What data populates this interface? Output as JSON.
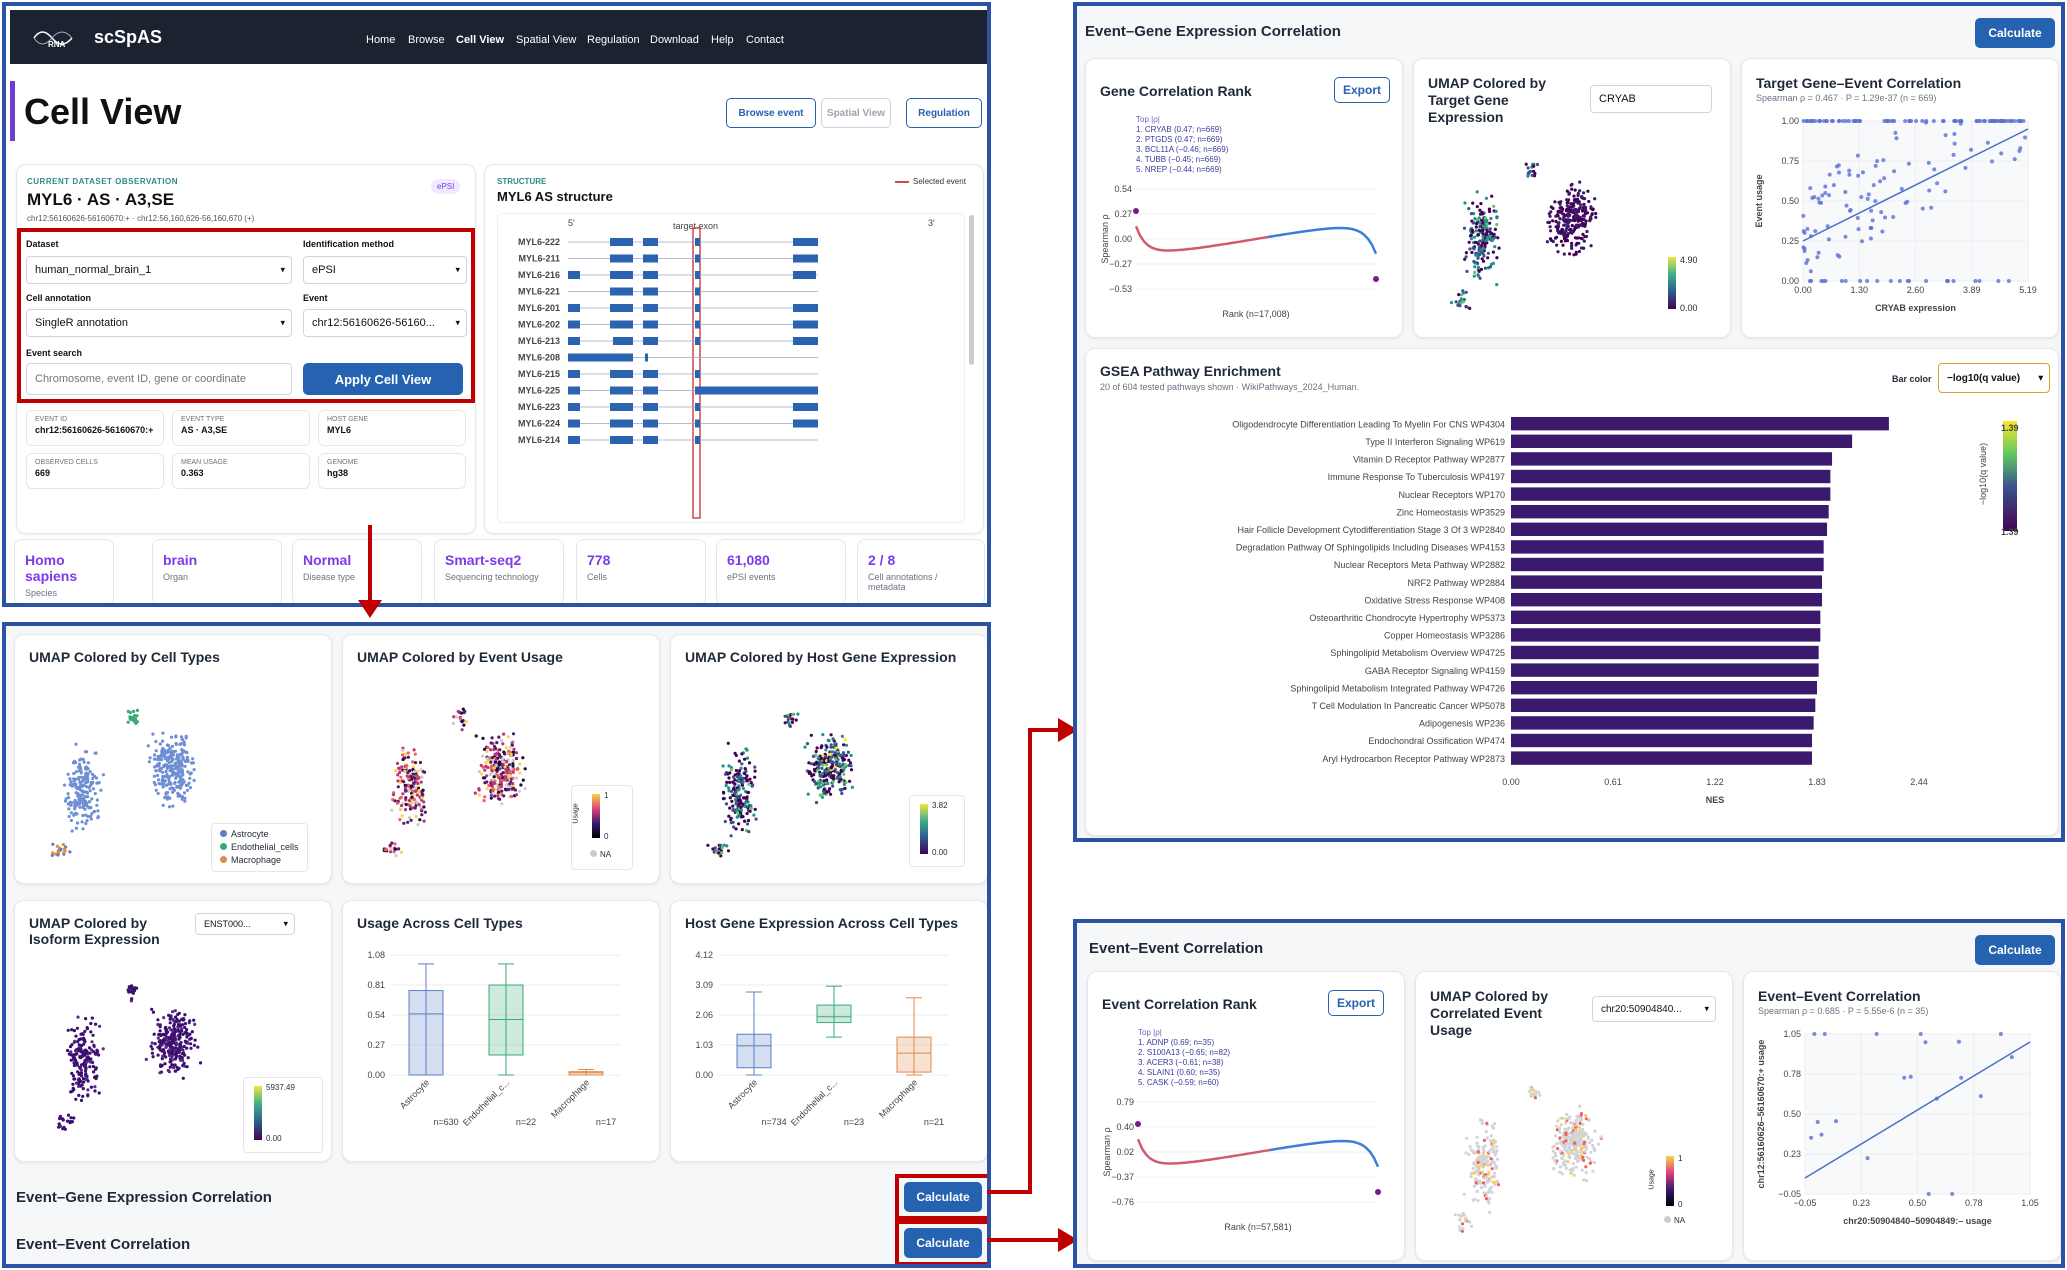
{
  "nav": {
    "brand": "scSpAS",
    "logo_text": "RNA",
    "links": [
      "Home",
      "Browse",
      "Cell View",
      "Spatial View",
      "Regulation",
      "Download",
      "Help",
      "Contact"
    ],
    "active": "Cell View"
  },
  "page": {
    "title": "Cell View",
    "buttons": {
      "browse": "Browse event",
      "spatial": "Spatial View",
      "regulation": "Regulation"
    }
  },
  "observation": {
    "kicker": "CURRENT DATASET OBSERVATION",
    "badge": "ePSI",
    "title": "MYL6 · AS · A3,SE",
    "coords": "chr12:56160626-56160670:+ · chr12:56,160,626-56,160,670 (+)"
  },
  "form": {
    "dataset_label": "Dataset",
    "dataset": "human_normal_brain_1",
    "method_label": "Identification method",
    "method": "ePSI",
    "annotation_label": "Cell annotation",
    "annotation": "SingleR annotation",
    "event_label": "Event",
    "event": "chr12:56160626-56160...",
    "search_label": "Event search",
    "search_placeholder": "Chromosome, event ID, gene or coordinate",
    "apply": "Apply Cell View"
  },
  "info": [
    {
      "k": "EVENT ID",
      "v": "chr12:56160626-56160670:+"
    },
    {
      "k": "EVENT TYPE",
      "v": "AS · A3,SE"
    },
    {
      "k": "HOST GENE",
      "v": "MYL6"
    },
    {
      "k": "OBSERVED CELLS",
      "v": "669"
    },
    {
      "k": "MEAN USAGE",
      "v": "0.363"
    },
    {
      "k": "GENOME",
      "v": "hg38"
    }
  ],
  "structure": {
    "kicker": "STRUCTURE",
    "title": "MYL6 AS structure",
    "legend": "Selected event",
    "target": "target exon",
    "left": "5'",
    "right": "3'",
    "isoforms": [
      "MYL6-222",
      "MYL6-211",
      "MYL6-216",
      "MYL6-221",
      "MYL6-201",
      "MYL6-202",
      "MYL6-213",
      "MYL6-208",
      "MYL6-215",
      "MYL6-225",
      "MYL6-223",
      "MYL6-224",
      "MYL6-214"
    ]
  },
  "stats": [
    {
      "v": "Homo sapiens",
      "k": "Species"
    },
    {
      "v": "brain",
      "k": "Organ"
    },
    {
      "v": "Normal",
      "k": "Disease type"
    },
    {
      "v": "Smart-seq2",
      "k": "Sequencing technology"
    },
    {
      "v": "778",
      "k": "Cells"
    },
    {
      "v": "61,080",
      "k": "ePSI events"
    },
    {
      "v": "2 / 8",
      "k": "Cell annotations / metadata"
    }
  ],
  "umap": {
    "cell_types": "UMAP Colored by Cell Types",
    "event_usage": "UMAP Colored by Event Usage",
    "host_gene": "UMAP Colored by Host Gene Expression",
    "isoform": "UMAP Colored by Isoform Expression",
    "isoform_select": "ENST000...",
    "legend": [
      "Astrocyte",
      "Endothelial_cells",
      "Macrophage"
    ],
    "usage_max": "1",
    "usage_min": "0",
    "na": "NA",
    "usage_label": "Usage",
    "host_max": "3.82",
    "host_min": "0.00",
    "iso_max": "5937.49",
    "iso_min": "0.00"
  },
  "box": {
    "usage_title": "Usage Across Cell Types",
    "host_title": "Host Gene Expression Across Cell Types",
    "cats": [
      "Astrocyte",
      "Endothelial_c...",
      "Macrophage"
    ],
    "usage_n": [
      "n=630",
      "n=22",
      "n=17"
    ],
    "host_n": [
      "n=734",
      "n=23",
      "n=21"
    ],
    "usage_ticks": [
      "1.08",
      "0.81",
      "0.54",
      "0.27",
      "0.00"
    ],
    "host_ticks": [
      "4.12",
      "3.09",
      "2.06",
      "1.03",
      "0.00"
    ]
  },
  "sections": {
    "egc": "Event–Gene Expression Correlation",
    "eec": "Event–Event Correlation",
    "calculate": "Calculate",
    "export": "Export"
  },
  "egc": {
    "rank_title": "Gene Correlation Rank",
    "top_label": "Top |ρ|",
    "top": [
      "1. CRYAB (0.47; n=669)",
      "2. PTGDS (0.47; n=669)",
      "3. BCL11A (−0.46; n=669)",
      "4. TUBB (−0.45; n=669)",
      "5. NREP (−0.44; n=669)"
    ],
    "yticks": [
      "0.54",
      "0.27",
      "0.00",
      "−0.27",
      "−0.53"
    ],
    "ylabel": "Spearman ρ",
    "xlabel": "Rank (n=17,008)",
    "umap_title": "UMAP Colored by Target Gene Expression",
    "gene": "CRYAB",
    "cb_max": "4.90",
    "cb_min": "0.00",
    "scatter_title": "Target Gene–Event Correlation",
    "scatter_sub": "Spearman ρ = 0.467 · P = 1.29e-37 (n = 669)",
    "sx": [
      "0.00",
      "1.30",
      "2.60",
      "3.89",
      "5.19"
    ],
    "sy": [
      "1.00",
      "0.75",
      "0.50",
      "0.25",
      "0.00"
    ],
    "sxlabel": "CRYAB expression",
    "sylabel": "Event usage"
  },
  "gsea": {
    "title": "GSEA Pathway Enrichment",
    "sub": "20 of 604 tested pathways shown · WikiPathways_2024_Human.",
    "barcolor_label": "Bar color",
    "barcolor": "−log10(q value)",
    "xlabel": "NES",
    "xticks": [
      "0.00",
      "0.61",
      "1.22",
      "1.83",
      "2.44"
    ],
    "cb_label": "−log10(q value)",
    "cb_top": "1.39",
    "cb_bot": "1.39"
  },
  "chart_data": {
    "type": "bar",
    "title": "GSEA Pathway Enrichment",
    "xlabel": "NES",
    "xlim": [
      0,
      2.44
    ],
    "categories": [
      "Oligodendrocyte Differentiation Leading To Myelin For CNS WP4304",
      "Type II Interferon Signaling WP619",
      "Vitamin D Receptor Pathway WP2877",
      "Immune Response To Tuberculosis WP4197",
      "Nuclear Receptors WP170",
      "Zinc Homeostasis WP3529",
      "Hair Follicle Development Cytodifferentiation Stage 3 Of 3 WP2840",
      "Degradation Pathway Of Sphingolipids Including Diseases WP4153",
      "Nuclear Receptors Meta Pathway WP2882",
      "NRF2 Pathway WP2884",
      "Oxidative Stress Response WP408",
      "Osteoarthritic Chondrocyte Hypertrophy WP5373",
      "Copper Homeostasis WP3286",
      "Sphingolipid Metabolism Overview WP4725",
      "GABA Receptor Signaling WP4159",
      "Sphingolipid Metabolism Integrated Pathway WP4726",
      "T Cell Modulation In Pancreatic Cancer WP5078",
      "Adipogenesis WP236",
      "Endochondral Ossification WP474",
      "Aryl Hydrocarbon Receptor Pathway WP2873"
    ],
    "values": [
      2.26,
      2.04,
      1.92,
      1.91,
      1.91,
      1.9,
      1.89,
      1.87,
      1.87,
      1.86,
      1.86,
      1.85,
      1.85,
      1.84,
      1.84,
      1.83,
      1.82,
      1.81,
      1.8,
      1.8
    ]
  },
  "eec": {
    "rank_title": "Event Correlation Rank",
    "top_label": "Top |ρ|",
    "top": [
      "1. ADNP (0.69; n=35)",
      "2. S100A13 (−0.65; n=82)",
      "3. ACER3 (−0.61; n=38)",
      "4. SLAIN1 (0.60; n=35)",
      "5. CASK (−0.59; n=60)"
    ],
    "yticks": [
      "0.79",
      "0.40",
      "0.02",
      "−0.37",
      "−0.76"
    ],
    "ylabel": "Spearman ρ",
    "xlabel": "Rank (n=57,581)",
    "umap_title": "UMAP Colored by Correlated Event Usage",
    "select": "chr20:50904840...",
    "cb_max": "1",
    "cb_min": "0",
    "na": "NA",
    "usage_label": "Usage",
    "scatter_title": "Event–Event Correlation",
    "scatter_sub": "Spearman ρ = 0.685 · P = 5.55e-6 (n = 35)",
    "sx": [
      "−0.05",
      "0.23",
      "0.50",
      "0.78",
      "1.05"
    ],
    "sy": [
      "1.05",
      "0.78",
      "0.50",
      "0.23",
      "−0.05"
    ],
    "sxlabel": "chr20:50904840–50904849:– usage",
    "sylabel": "chr12:56160626–56160670:+ usage"
  }
}
